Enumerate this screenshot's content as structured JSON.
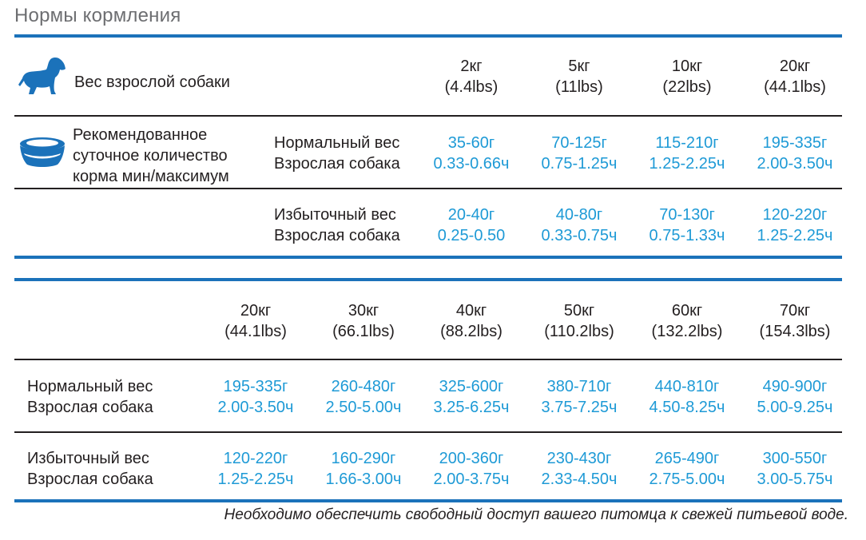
{
  "title": "Нормы кормления",
  "icons": {
    "dog": "dog-icon",
    "bowl": "food-bowl-icon"
  },
  "colors": {
    "accent": "#1b72ba",
    "values": "#1e9ad6",
    "text": "#231f20"
  },
  "table1": {
    "weight_label": "Вес взрослой собаки",
    "ration_label": [
      "Рекомендованное",
      "суточное количество",
      "корма мин/максимум"
    ],
    "columns": [
      {
        "kg": "2кг",
        "lbs": "(4.4lbs)"
      },
      {
        "kg": "5кг",
        "lbs": "(11lbs)"
      },
      {
        "kg": "10кг",
        "lbs": "(22lbs)"
      },
      {
        "kg": "20кг",
        "lbs": "(44.1lbs)"
      }
    ],
    "rows": [
      {
        "label1": "Нормальный вес",
        "label2": "Взрослая собака",
        "cells": [
          {
            "g": "35-60г",
            "c": "0.33-0.66ч"
          },
          {
            "g": "70-125г",
            "c": "0.75-1.25ч"
          },
          {
            "g": "115-210г",
            "c": "1.25-2.25ч"
          },
          {
            "g": "195-335г",
            "c": "2.00-3.50ч"
          }
        ]
      },
      {
        "label1": "Избыточный вес",
        "label2": "Взрослая собака",
        "cells": [
          {
            "g": "20-40г",
            "c": "0.25-0.50"
          },
          {
            "g": "40-80г",
            "c": "0.33-0.75ч"
          },
          {
            "g": "70-130г",
            "c": "0.75-1.33ч"
          },
          {
            "g": "120-220г",
            "c": "1.25-2.25ч"
          }
        ]
      }
    ]
  },
  "table2": {
    "columns": [
      {
        "kg": "20кг",
        "lbs": "(44.1lbs)"
      },
      {
        "kg": "30кг",
        "lbs": "(66.1lbs)"
      },
      {
        "kg": "40кг",
        "lbs": "(88.2lbs)"
      },
      {
        "kg": "50кг",
        "lbs": "(110.2lbs)"
      },
      {
        "kg": "60кг",
        "lbs": "(132.2lbs)"
      },
      {
        "kg": "70кг",
        "lbs": "(154.3lbs)"
      }
    ],
    "rows": [
      {
        "label1": "Нормальный вес",
        "label2": "Взрослая собака",
        "cells": [
          {
            "g": "195-335г",
            "c": "2.00-3.50ч"
          },
          {
            "g": "260-480г",
            "c": "2.50-5.00ч"
          },
          {
            "g": "325-600г",
            "c": "3.25-6.25ч"
          },
          {
            "g": "380-710г",
            "c": "3.75-7.25ч"
          },
          {
            "g": "440-810г",
            "c": "4.50-8.25ч"
          },
          {
            "g": "490-900г",
            "c": "5.00-9.25ч"
          }
        ]
      },
      {
        "label1": "Избыточный вес",
        "label2": "Взрослая собака",
        "cells": [
          {
            "g": "120-220г",
            "c": "1.25-2.25ч"
          },
          {
            "g": "160-290г",
            "c": "1.66-3.00ч"
          },
          {
            "g": "200-360г",
            "c": "2.00-3.75ч"
          },
          {
            "g": "230-430г",
            "c": "2.33-4.50ч"
          },
          {
            "g": "265-490г",
            "c": "2.75-5.00ч"
          },
          {
            "g": "300-550г",
            "c": "3.00-5.75ч"
          }
        ]
      }
    ]
  },
  "note": "Необходимо обеспечить свободный доступ  вашего питомца к свежей питьевой воде."
}
